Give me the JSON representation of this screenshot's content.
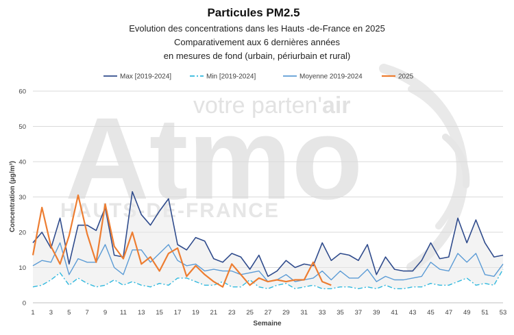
{
  "chart_data": {
    "type": "line",
    "title": "Particules PM2.5",
    "subtitle_lines": [
      "Evolution des concentrations dans les Hauts -de-France en 2025",
      "Comparativement aux 6 dernières années",
      "en mesures de fond (urbain, périurbain et rural)"
    ],
    "xlabel": "Semaine",
    "ylabel": "Concentration (µg/m³)",
    "ylim": [
      0,
      60
    ],
    "xlim": [
      1,
      53
    ],
    "y_ticks": [
      0,
      10,
      20,
      30,
      40,
      50,
      60
    ],
    "x_ticks": [
      1,
      3,
      5,
      7,
      9,
      11,
      13,
      15,
      17,
      19,
      21,
      23,
      25,
      27,
      29,
      31,
      33,
      35,
      37,
      39,
      41,
      43,
      45,
      47,
      49,
      51,
      53
    ],
    "legend_position": "top",
    "grid": true,
    "x": [
      1,
      2,
      3,
      4,
      5,
      6,
      7,
      8,
      9,
      10,
      11,
      12,
      13,
      14,
      15,
      16,
      17,
      18,
      19,
      20,
      21,
      22,
      23,
      24,
      25,
      26,
      27,
      28,
      29,
      30,
      31,
      32,
      33,
      34,
      35,
      36,
      37,
      38,
      39,
      40,
      41,
      42,
      43,
      44,
      45,
      46,
      47,
      48,
      49,
      50,
      51,
      52,
      53
    ],
    "series": [
      {
        "name": "Max [2019-2024]",
        "color": "#2f4b8c",
        "style": "solid",
        "values": [
          17,
          20,
          15.5,
          24,
          11,
          22,
          22,
          20.5,
          27,
          13.5,
          13,
          31.5,
          25,
          22,
          26,
          29.5,
          16.5,
          15,
          18.5,
          17.5,
          12.5,
          11.5,
          14,
          13,
          9.5,
          13.5,
          7.5,
          9,
          12,
          10,
          11,
          10.5,
          17,
          12,
          14,
          13.5,
          12,
          16.5,
          8,
          13,
          9.5,
          9,
          9,
          12,
          17,
          12.5,
          13,
          24,
          17,
          23.5,
          17,
          13,
          13.5
        ]
      },
      {
        "name": "Min [2019-2024]",
        "color": "#2fb8de",
        "style": "dashdot",
        "values": [
          4.5,
          5,
          6.5,
          8.5,
          5,
          7,
          5.5,
          4.5,
          5,
          6.5,
          5,
          6,
          5,
          4.5,
          5.5,
          5,
          7,
          7,
          6,
          5,
          5,
          6,
          4.5,
          4.5,
          6.5,
          4.5,
          4,
          5,
          5.5,
          4,
          4.5,
          5,
          4,
          4,
          4.5,
          4.5,
          4,
          4.5,
          4,
          5,
          4,
          4,
          4.5,
          4.5,
          5.5,
          5,
          5,
          6,
          7,
          5,
          5.5,
          5,
          9.5
        ]
      },
      {
        "name": "Moyenne 2019-2024",
        "color": "#5b9bd5",
        "style": "solid",
        "values": [
          10.5,
          12,
          11.5,
          17,
          8,
          12.5,
          11.5,
          11.5,
          16.5,
          10,
          8,
          15,
          15,
          11.5,
          14,
          16.5,
          12,
          10.5,
          11,
          9,
          9.5,
          9,
          9,
          8,
          8.5,
          9,
          6,
          6.5,
          8,
          6,
          6.5,
          7,
          9,
          6.5,
          9,
          7,
          7,
          9.5,
          6,
          7.5,
          6.5,
          6.5,
          7,
          7.5,
          11.5,
          9.5,
          9,
          14,
          11.5,
          14,
          8,
          7.5,
          11
        ]
      },
      {
        "name": "2025",
        "color": "#ed7d31",
        "style": "solid",
        "values": [
          13.5,
          27,
          16,
          11,
          19,
          30.5,
          19.5,
          11.5,
          28,
          16,
          12.5,
          20,
          11,
          13,
          9,
          14,
          15.5,
          7.5,
          10.5,
          8,
          6,
          4.5,
          11,
          8,
          5,
          7,
          6,
          6.5,
          6,
          6.5,
          6.5,
          11.5,
          6,
          5,
          null,
          null,
          null,
          null,
          null,
          null,
          null,
          null,
          null,
          null,
          null,
          null,
          null,
          null,
          null,
          null,
          null,
          null,
          null
        ]
      }
    ]
  },
  "watermark": {
    "logo_text": "Atmo",
    "tagline_prefix": "votre parten'",
    "tagline_bold": "air",
    "region": "HAUTS-DE-FRANCE"
  }
}
